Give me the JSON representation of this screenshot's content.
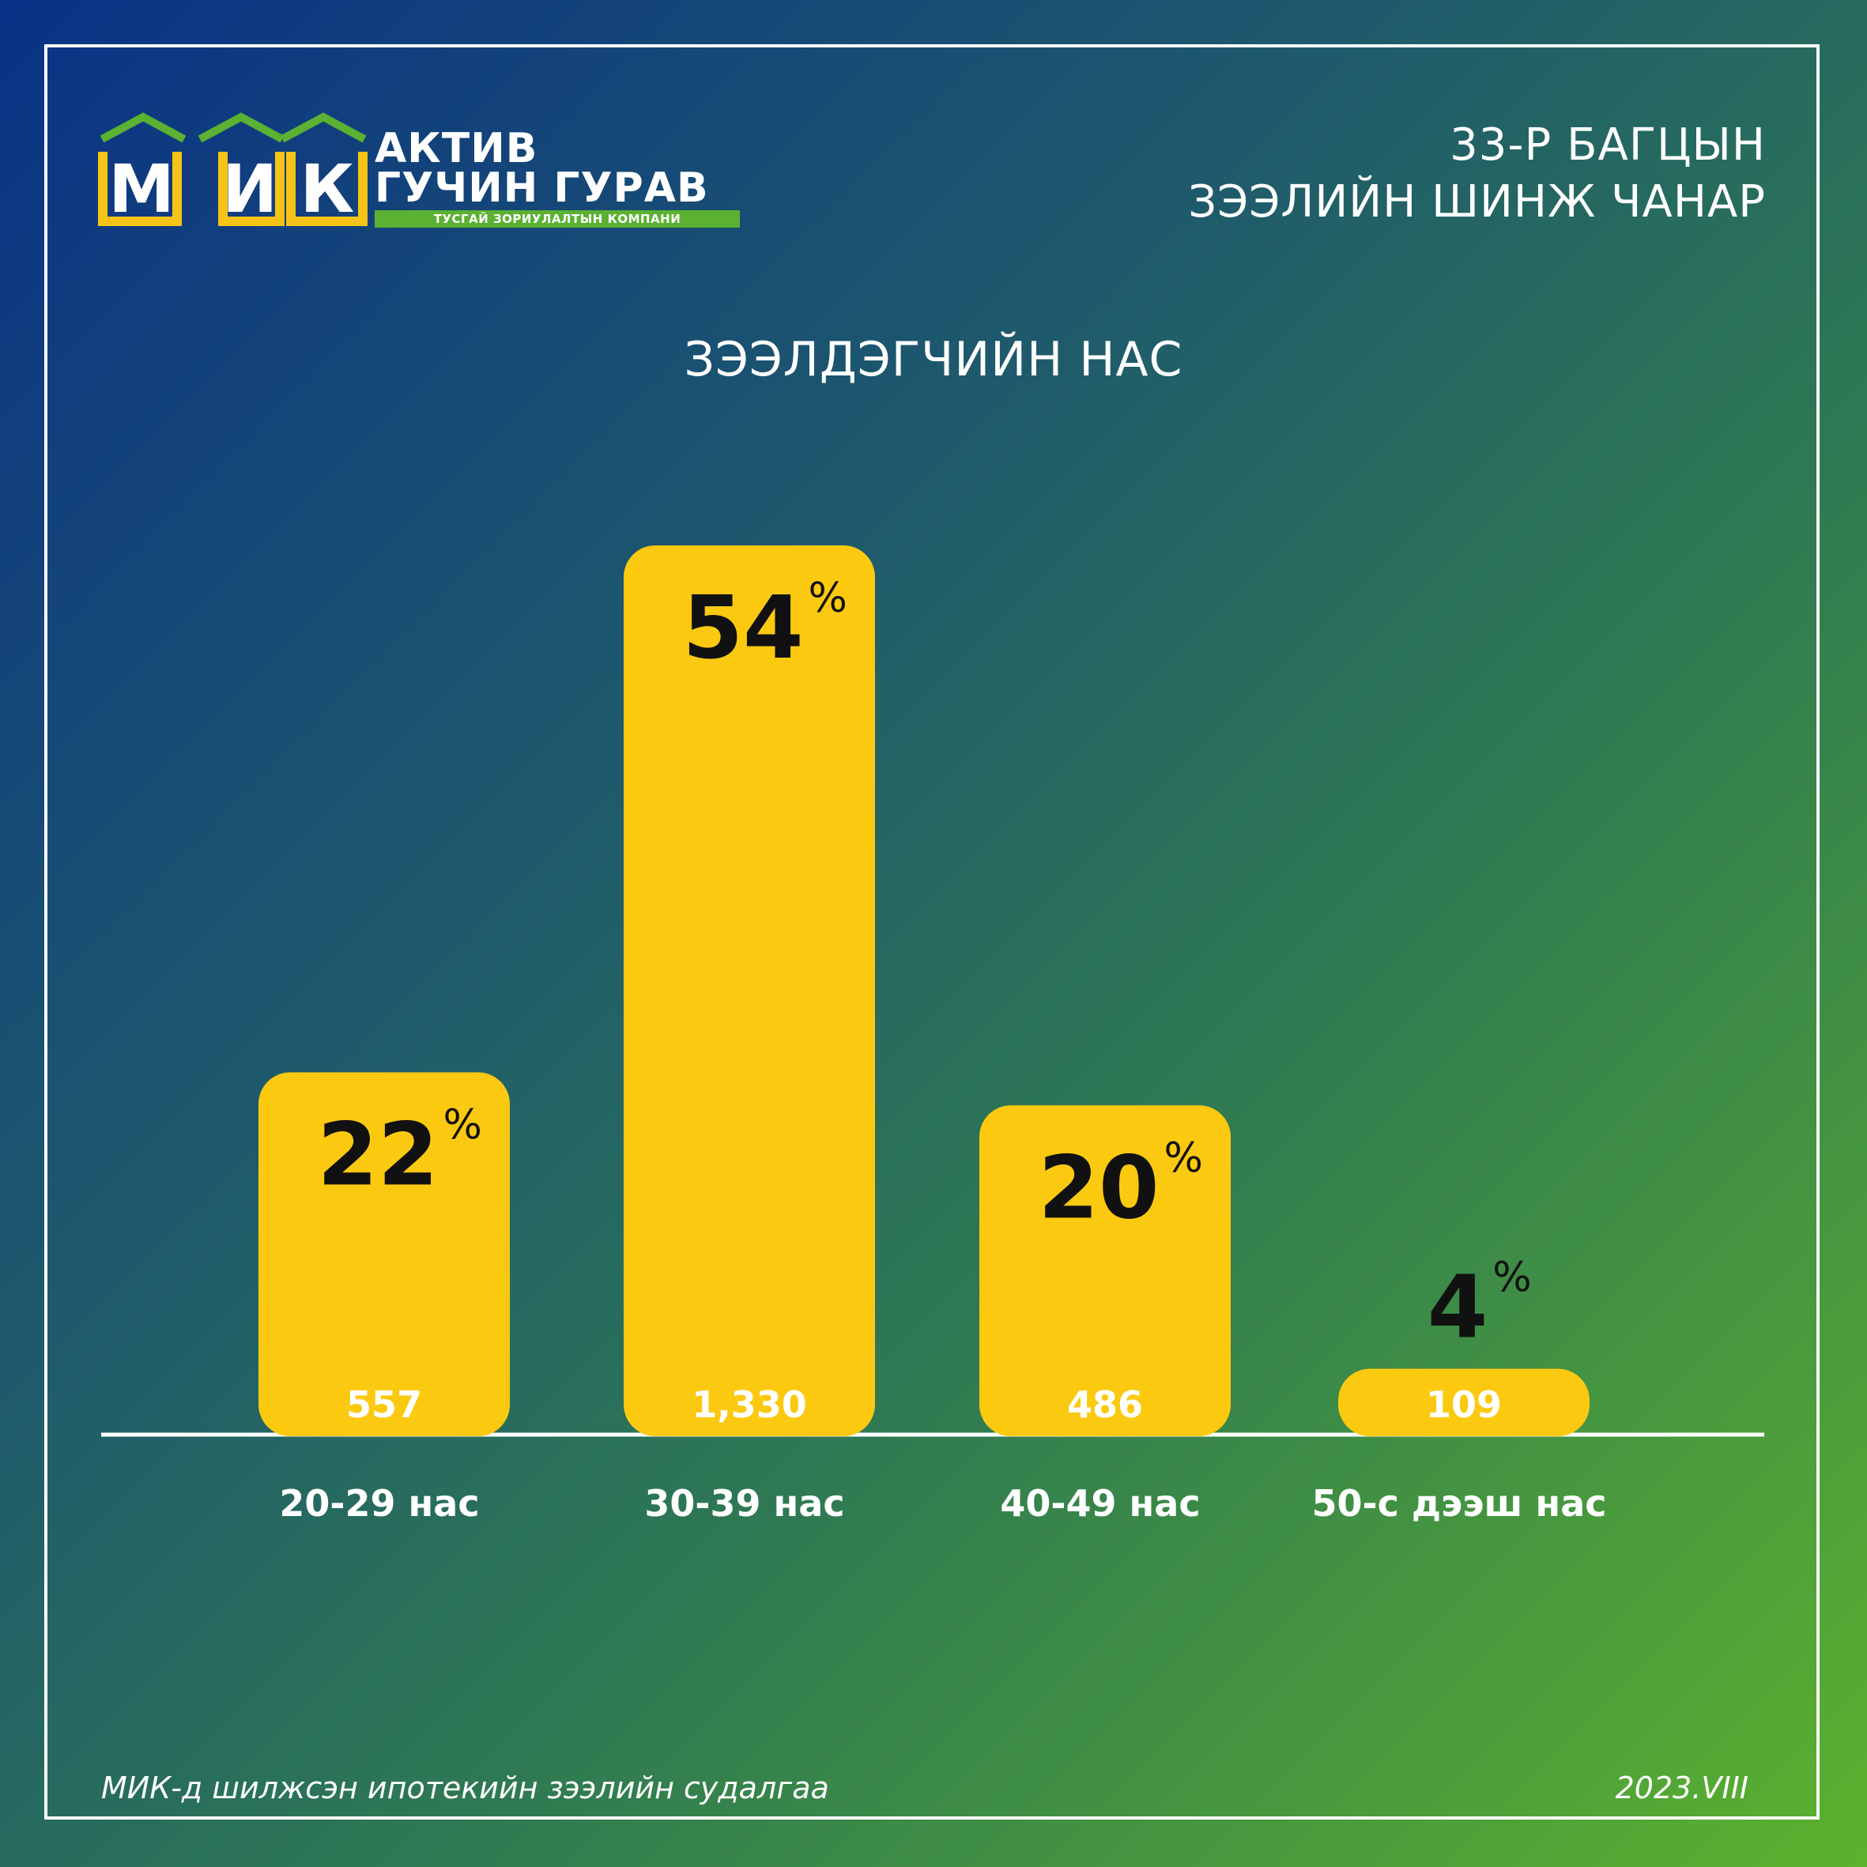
{
  "logo": {
    "letters": [
      "М",
      "И",
      "К"
    ],
    "line1": "АКТИВ",
    "line2": "ГУЧИН ГУРАВ",
    "strip": "ТУСГАЙ ЗОРИУЛАЛТЫН КОМПАНИ"
  },
  "header": {
    "line1": "33-Р БАГЦЫН",
    "line2": "ЗЭЭЛИЙН ШИНЖ ЧАНАР"
  },
  "footer": {
    "source": "МИК-д шилжсэн ипотекийн зээлийн судалгаа",
    "date": "2023.VIII"
  },
  "colors": {
    "bar": "#fcc911",
    "bar_text": "#111111",
    "count_text": "#ffffff",
    "brand_green": "#5bb131",
    "brand_yellow": "#f6c416"
  },
  "chart_data": {
    "type": "bar",
    "title": "ЗЭЭЛДЭГЧИЙН НАС",
    "categories": [
      "20-29 нас",
      "30-39 нас",
      "40-49 нас",
      "50-с дээш нас"
    ],
    "values": [
      22,
      54,
      20,
      4
    ],
    "value_suffix": "%",
    "counts": [
      "557",
      "1,330",
      "486",
      "109"
    ],
    "ylim": [
      0,
      54
    ],
    "grid": false,
    "legend": "none"
  }
}
